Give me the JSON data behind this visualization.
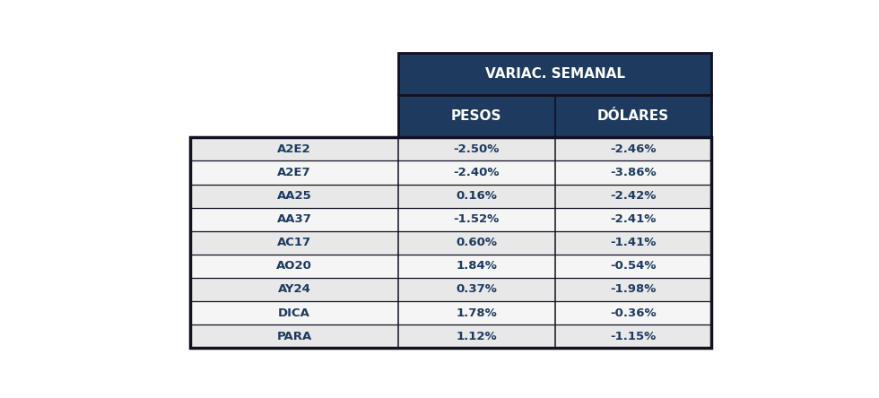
{
  "header_title": "VARIAC. SEMANAL",
  "header_cols": [
    "PESOS",
    "DÓLARES"
  ],
  "rows": [
    [
      "A2E2",
      "-2.50%",
      "-2.46%"
    ],
    [
      "A2E7",
      "-2.40%",
      "-3.86%"
    ],
    [
      "AA25",
      "0.16%",
      "-2.42%"
    ],
    [
      "AA37",
      "-1.52%",
      "-2.41%"
    ],
    [
      "AC17",
      "0.60%",
      "-1.41%"
    ],
    [
      "AO20",
      "1.84%",
      "-0.54%"
    ],
    [
      "AY24",
      "0.37%",
      "-1.98%"
    ],
    [
      "DICA",
      "1.78%",
      "-0.36%"
    ],
    [
      "PARA",
      "1.12%",
      "-1.15%"
    ]
  ],
  "header_bg": "#1e3a5f",
  "header_text_color": "#ffffff",
  "row_bg_odd": "#e8e8e8",
  "row_bg_even": "#f5f5f5",
  "row_text_color": "#1e3a5f",
  "border_color": "#111122",
  "fig_width": 9.8,
  "fig_height": 4.44,
  "dpi": 100
}
